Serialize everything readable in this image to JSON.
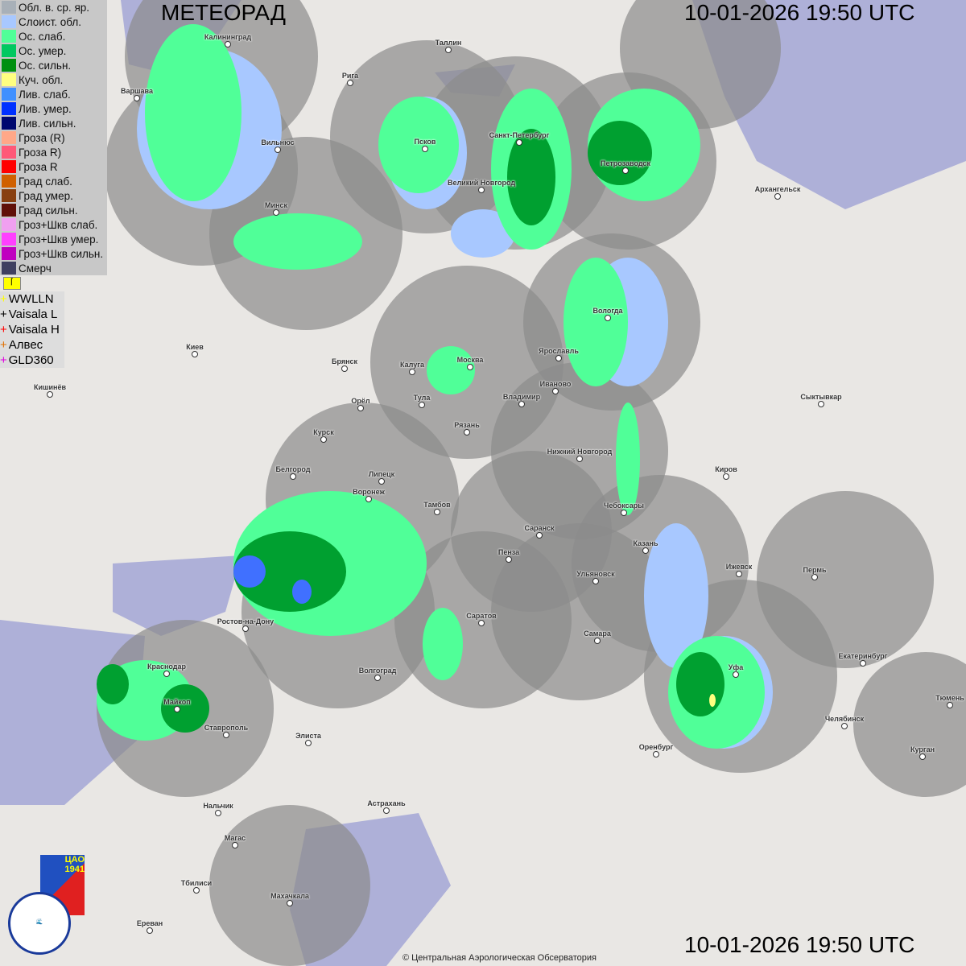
{
  "title": "МЕТЕОРАД",
  "timestamp_top": "10-01-2026  19:50 UTC",
  "timestamp_bottom": "10-01-2026  19:50 UTC",
  "copyright": "© Центральная Аэрологическая Обсерватория",
  "legend": [
    {
      "label": "Обл. в. ср. яр.",
      "color": "#a8b0b8"
    },
    {
      "label": "Слоист. обл.",
      "color": "#a8c8ff"
    },
    {
      "label": "Ос. слаб.",
      "color": "#50ff98"
    },
    {
      "label": "Ос. умер.",
      "color": "#00c860"
    },
    {
      "label": "Ос. сильн.",
      "color": "#009010"
    },
    {
      "label": "Куч. обл.",
      "color": "#ffff80"
    },
    {
      "label": "Лив. слаб.",
      "color": "#4090ff"
    },
    {
      "label": "Лив. умер.",
      "color": "#0030ff"
    },
    {
      "label": "Лив. сильн.",
      "color": "#000870"
    },
    {
      "label": "Гроза (R)",
      "color": "#ffa888"
    },
    {
      "label": "Гроза R)",
      "color": "#ff5878"
    },
    {
      "label": "Гроза R",
      "color": "#ff0000"
    },
    {
      "label": "Град слаб.",
      "color": "#d06000"
    },
    {
      "label": "Град умер.",
      "color": "#884010"
    },
    {
      "label": "Град сильн.",
      "color": "#601008"
    },
    {
      "label": "Гроз+Шкв слаб.",
      "color": "#f0a0f0"
    },
    {
      "label": "Гроз+Шкв умер.",
      "color": "#ff40ff"
    },
    {
      "label": "Гроз+Шкв сильн.",
      "color": "#c000c0"
    },
    {
      "label": "Смерч",
      "color": "#404060"
    }
  ],
  "lightning": [
    {
      "label": "WWLLN",
      "color": "#ffff00"
    },
    {
      "label": "Vaisala L",
      "color": "#000000"
    },
    {
      "label": "Vaisala H",
      "color": "#ff0000"
    },
    {
      "label": "Алвес",
      "color": "#e07000"
    },
    {
      "label": "GLD360",
      "color": "#e000e0"
    }
  ],
  "logo": {
    "org": "РОСГИДРОМЕТ ROSHYDROMET",
    "cao": "ЦАО 1941"
  },
  "cities": [
    "Калининград",
    "Варшава",
    "Рига",
    "Таллин",
    "Вильнюс",
    "Псков",
    "Санкт-Петербург",
    "Петрозаводск",
    "Архангельск",
    "Великий Новгород",
    "Минск",
    "Вологда",
    "Ярославль",
    "Иваново",
    "Москва",
    "Калуга",
    "Брянск",
    "Киев",
    "Кишинёв",
    "Тула",
    "Владимир",
    "Орёл",
    "Рязань",
    "Сыктывкар",
    "Курск",
    "Нижний Новгород",
    "Киров",
    "Белгород",
    "Липецк",
    "Воронеж",
    "Тамбов",
    "Чебоксары",
    "Саранск",
    "Пенза",
    "Казань",
    "Ижевск",
    "Пермь",
    "Ульяновск",
    "Саратов",
    "Самара",
    "Ростов-на-Дону",
    "Волгоград",
    "Краснодар",
    "Екатеринбург",
    "Уфа",
    "Майкоп",
    "Ставрополь",
    "Элиста",
    "Челябинск",
    "Тюмень",
    "Оренбург",
    "Курган",
    "Нальчик",
    "Астрахань",
    "Магас",
    "Тбилиси",
    "Махачкала",
    "Ереван"
  ]
}
